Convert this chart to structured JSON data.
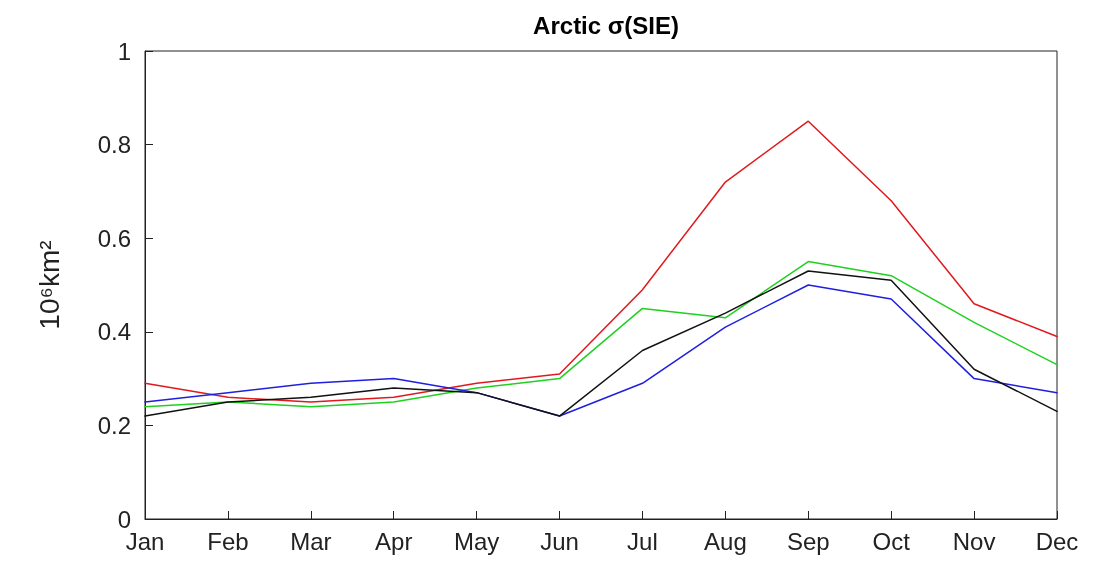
{
  "chart_data": {
    "type": "line",
    "title": "Arctic σ(SIE)",
    "ylabel": "10⁶km²",
    "categories": [
      "Jan",
      "Feb",
      "Mar",
      "Apr",
      "May",
      "Jun",
      "Jul",
      "Aug",
      "Sep",
      "Oct",
      "Nov",
      "Dec"
    ],
    "series": [
      {
        "color": "#e0191e",
        "values": [
          0.29,
          0.26,
          0.25,
          0.26,
          0.29,
          0.31,
          0.49,
          0.72,
          0.85,
          0.68,
          0.46,
          0.39
        ]
      },
      {
        "color": "#1fd01f",
        "values": [
          0.24,
          0.25,
          0.24,
          0.25,
          0.28,
          0.3,
          0.45,
          0.43,
          0.55,
          0.52,
          0.42,
          0.33
        ]
      },
      {
        "color": "#1f1fe0",
        "values": [
          0.25,
          0.27,
          0.29,
          0.3,
          0.27,
          0.22,
          0.29,
          0.41,
          0.5,
          0.47,
          0.3,
          0.27
        ]
      },
      {
        "color": "#111111",
        "values": [
          0.22,
          0.25,
          0.26,
          0.28,
          0.27,
          0.22,
          0.36,
          0.44,
          0.53,
          0.51,
          0.32,
          0.23
        ]
      }
    ],
    "ylim": [
      0,
      1
    ],
    "yticks": [
      0,
      0.2,
      0.4,
      0.6,
      0.8,
      1
    ],
    "grid": false,
    "marker": "none",
    "line_style": "solid"
  }
}
